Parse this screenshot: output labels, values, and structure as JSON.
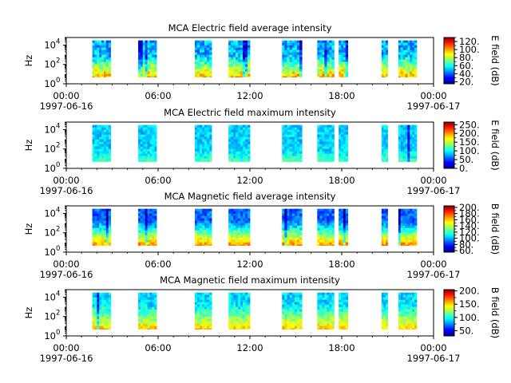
{
  "figure": {
    "background": "#ffffff"
  },
  "chart_data": [
    {
      "type": "heatmap",
      "title": "MCA  Electric field average intensity",
      "ylabel": "Hz",
      "yscale": "log",
      "ylim": [
        1,
        60000
      ],
      "yticks": [
        {
          "exp": "0",
          "value": 1
        },
        {
          "exp": "2",
          "value": 100
        },
        {
          "exp": "4",
          "value": 10000
        }
      ],
      "x_axis": {
        "range": [
          "1997-06-16 00:00",
          "1997-06-17 00:00"
        ],
        "tick_labels": [
          {
            "time": "00:00",
            "hour": 0,
            "date": "1997-06-16"
          },
          {
            "time": "06:00",
            "hour": 6
          },
          {
            "time": "12:00",
            "hour": 12
          },
          {
            "time": "18:00",
            "hour": 18
          },
          {
            "time": "00:00",
            "hour": 24,
            "date": "1997-06-17"
          }
        ]
      },
      "colorbar": {
        "label": "E field (dB)",
        "range": [
          15,
          130
        ],
        "colormap": "jet",
        "ticks": [
          "20.",
          "40.",
          "60.",
          "80.",
          "100.",
          "120."
        ],
        "tick_values": [
          20,
          40,
          60,
          80,
          100,
          120
        ]
      },
      "data_blocks_hours": [
        [
          1.7,
          2.9
        ],
        [
          4.7,
          5.9
        ],
        [
          8.4,
          9.5
        ],
        [
          10.6,
          12.0
        ],
        [
          14.1,
          15.4
        ],
        [
          16.4,
          17.5
        ],
        [
          17.8,
          18.4
        ],
        [
          20.6,
          21.0
        ],
        [
          21.7,
          22.9
        ]
      ],
      "frequency_band_hz": [
        5,
        30000
      ],
      "intensity_profile": "decreasing with frequency"
    },
    {
      "type": "heatmap",
      "title": "MCA  Electric field maximum intensity",
      "ylabel": "Hz",
      "yscale": "log",
      "ylim": [
        1,
        60000
      ],
      "yticks": [
        {
          "exp": "0",
          "value": 1
        },
        {
          "exp": "2",
          "value": 100
        },
        {
          "exp": "4",
          "value": 10000
        }
      ],
      "x_axis": {
        "range": [
          "1997-06-16 00:00",
          "1997-06-17 00:00"
        ],
        "tick_labels": [
          {
            "time": "00:00",
            "hour": 0,
            "date": "1997-06-16"
          },
          {
            "time": "06:00",
            "hour": 6
          },
          {
            "time": "12:00",
            "hour": 12
          },
          {
            "time": "18:00",
            "hour": 18
          },
          {
            "time": "00:00",
            "hour": 24,
            "date": "1997-06-17"
          }
        ]
      },
      "colorbar": {
        "label": "E field (dB)",
        "range": [
          0,
          265
        ],
        "colormap": "jet",
        "ticks": [
          "0.",
          "50.",
          "100.",
          "150.",
          "200.",
          "250."
        ],
        "tick_values": [
          0,
          50,
          100,
          150,
          200,
          250
        ]
      },
      "data_blocks_hours": [
        [
          1.7,
          2.9
        ],
        [
          4.7,
          5.9
        ],
        [
          8.4,
          9.5
        ],
        [
          10.6,
          12.0
        ],
        [
          14.1,
          15.4
        ],
        [
          16.4,
          17.5
        ],
        [
          17.8,
          18.4
        ],
        [
          20.6,
          21.0
        ],
        [
          21.7,
          22.9
        ]
      ],
      "frequency_band_hz": [
        5,
        30000
      ],
      "intensity_profile": "mostly low, slight rise at low frequency"
    },
    {
      "type": "heatmap",
      "title": "MCA  Magnetic field average intensity",
      "ylabel": "Hz",
      "yscale": "log",
      "ylim": [
        1,
        60000
      ],
      "yticks": [
        {
          "exp": "0",
          "value": 1
        },
        {
          "exp": "2",
          "value": 100
        },
        {
          "exp": "4",
          "value": 10000
        }
      ],
      "x_axis": {
        "range": [
          "1997-06-16 00:00",
          "1997-06-17 00:00"
        ],
        "tick_labels": [
          {
            "time": "00:00",
            "hour": 0,
            "date": "1997-06-16"
          },
          {
            "time": "06:00",
            "hour": 6
          },
          {
            "time": "12:00",
            "hour": 12
          },
          {
            "time": "18:00",
            "hour": 18
          },
          {
            "time": "00:00",
            "hour": 24,
            "date": "1997-06-17"
          }
        ]
      },
      "colorbar": {
        "label": "B field (dB)",
        "range": [
          55,
          205
        ],
        "colormap": "jet",
        "ticks": [
          "60.",
          "80.",
          "100.",
          "120.",
          "140.",
          "160.",
          "180.",
          "200."
        ],
        "tick_values": [
          60,
          80,
          100,
          120,
          140,
          160,
          180,
          200
        ]
      },
      "data_blocks_hours": [
        [
          1.7,
          2.9
        ],
        [
          4.7,
          5.9
        ],
        [
          8.4,
          9.5
        ],
        [
          10.6,
          12.0
        ],
        [
          14.1,
          15.4
        ],
        [
          16.4,
          17.5
        ],
        [
          17.8,
          18.4
        ],
        [
          20.6,
          21.0
        ],
        [
          21.7,
          22.9
        ]
      ],
      "frequency_band_hz": [
        5,
        30000
      ],
      "intensity_profile": "strong at low frequency, weak at high frequency"
    },
    {
      "type": "heatmap",
      "title": "MCA  Magnetic field maximum intensity",
      "ylabel": "Hz",
      "yscale": "log",
      "ylim": [
        1,
        60000
      ],
      "yticks": [
        {
          "exp": "0",
          "value": 1
        },
        {
          "exp": "2",
          "value": 100
        },
        {
          "exp": "4",
          "value": 10000
        }
      ],
      "x_axis": {
        "range": [
          "1997-06-16 00:00",
          "1997-06-17 00:00"
        ],
        "tick_labels": [
          {
            "time": "00:00",
            "hour": 0,
            "date": "1997-06-16"
          },
          {
            "time": "06:00",
            "hour": 6
          },
          {
            "time": "12:00",
            "hour": 12
          },
          {
            "time": "18:00",
            "hour": 18
          },
          {
            "time": "00:00",
            "hour": 24,
            "date": "1997-06-17"
          }
        ]
      },
      "colorbar": {
        "label": "B field (dB)",
        "range": [
          30,
          205
        ],
        "colormap": "jet",
        "ticks": [
          "50.",
          "100.",
          "150.",
          "200."
        ],
        "tick_values": [
          50,
          100,
          150,
          200
        ]
      },
      "data_blocks_hours": [
        [
          1.7,
          2.9
        ],
        [
          4.7,
          5.9
        ],
        [
          8.4,
          9.5
        ],
        [
          10.6,
          12.0
        ],
        [
          14.1,
          15.4
        ],
        [
          16.4,
          17.5
        ],
        [
          17.8,
          18.4
        ],
        [
          20.6,
          21.0
        ],
        [
          21.7,
          22.9
        ]
      ],
      "frequency_band_hz": [
        5,
        30000
      ],
      "intensity_profile": "moderate at low frequency, cyan at high frequency"
    }
  ]
}
